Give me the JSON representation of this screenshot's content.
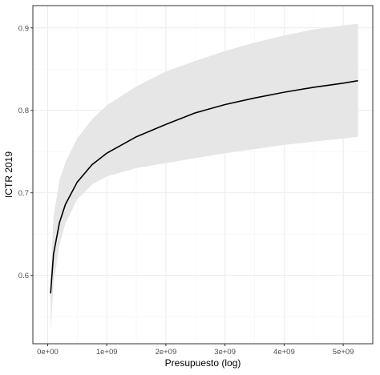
{
  "chart_data": {
    "type": "line",
    "title": "",
    "xlabel": "Presupuesto (log)",
    "ylabel": "ICTR 2019",
    "x_ticks": [
      {
        "value": 0,
        "label": "0e+00"
      },
      {
        "value": 1000000000,
        "label": "1e+09"
      },
      {
        "value": 2000000000,
        "label": "2e+09"
      },
      {
        "value": 3000000000,
        "label": "3e+09"
      },
      {
        "value": 4000000000,
        "label": "4e+09"
      },
      {
        "value": 5000000000,
        "label": "5e+09"
      }
    ],
    "y_ticks": [
      {
        "value": 0.6,
        "label": "0.6"
      },
      {
        "value": 0.7,
        "label": "0.7"
      },
      {
        "value": 0.8,
        "label": "0.8"
      },
      {
        "value": 0.9,
        "label": "0.9"
      }
    ],
    "xlim": [
      -250000000,
      5500000000
    ],
    "ylim": [
      0.517,
      0.927
    ],
    "grid": true,
    "colors": {
      "line": "#000000",
      "ribbon": "#e6e6e6",
      "panel_border": "#333333",
      "grid_major": "#ebebeb",
      "grid_minor": "#f5f5f5"
    },
    "series": [
      {
        "x": [
          50000000,
          100000000,
          200000000,
          300000000,
          500000000,
          750000000,
          1000000000,
          1500000000,
          2000000000,
          2500000000,
          3000000000,
          3500000000,
          4000000000,
          4500000000,
          5000000000,
          5250000000
        ],
        "y": [
          0.578,
          0.626,
          0.664,
          0.686,
          0.713,
          0.734,
          0.748,
          0.768,
          0.783,
          0.797,
          0.807,
          0.815,
          0.822,
          0.828,
          0.833,
          0.836
        ],
        "lower": [
          0.53,
          0.59,
          0.637,
          0.663,
          0.692,
          0.71,
          0.72,
          0.73,
          0.736,
          0.742,
          0.748,
          0.753,
          0.758,
          0.762,
          0.766,
          0.768
        ],
        "upper": [
          0.6,
          0.672,
          0.715,
          0.737,
          0.766,
          0.789,
          0.806,
          0.829,
          0.847,
          0.86,
          0.872,
          0.882,
          0.891,
          0.898,
          0.903,
          0.905
        ]
      }
    ]
  }
}
